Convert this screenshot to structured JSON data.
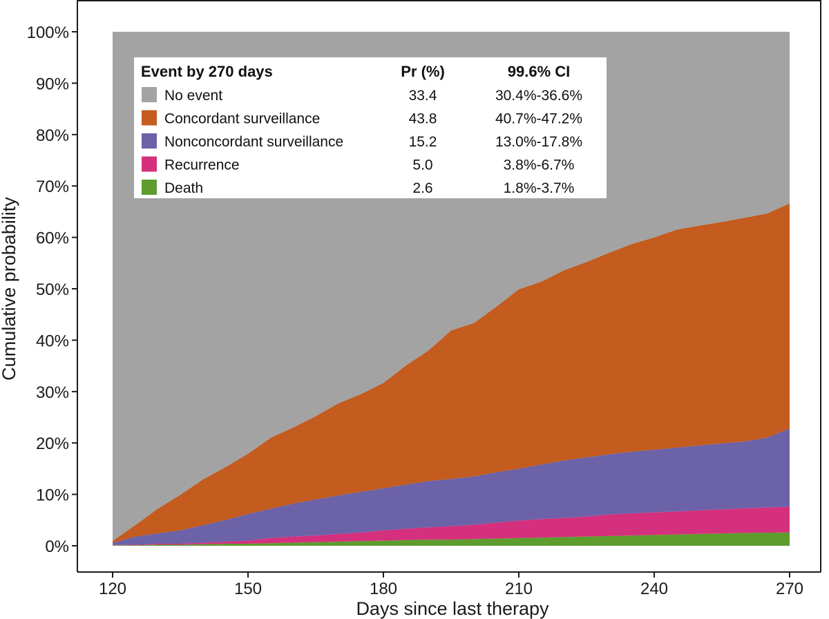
{
  "chart_data": {
    "type": "area",
    "stacked": true,
    "xlabel": "Days since last therapy",
    "ylabel": "Cumulative probability",
    "xlim": [
      120,
      270
    ],
    "ylim": [
      0,
      1
    ],
    "x_ticks": [
      120,
      150,
      180,
      210,
      240,
      270
    ],
    "y_ticks": [
      "0%",
      "10%",
      "20%",
      "30%",
      "40%",
      "50%",
      "60%",
      "70%",
      "80%",
      "90%",
      "100%"
    ],
    "x": [
      120,
      125,
      130,
      135,
      140,
      145,
      150,
      155,
      160,
      165,
      170,
      175,
      180,
      185,
      190,
      195,
      200,
      205,
      210,
      215,
      220,
      225,
      230,
      235,
      240,
      245,
      250,
      255,
      260,
      265,
      270
    ],
    "series": [
      {
        "name": "Death",
        "color": "#5e9c2e",
        "values": [
          0.001,
          0.001,
          0.002,
          0.002,
          0.003,
          0.004,
          0.004,
          0.005,
          0.006,
          0.007,
          0.008,
          0.009,
          0.01,
          0.011,
          0.012,
          0.012,
          0.013,
          0.014,
          0.015,
          0.016,
          0.017,
          0.018,
          0.019,
          0.02,
          0.021,
          0.022,
          0.023,
          0.024,
          0.025,
          0.0255,
          0.026
        ]
      },
      {
        "name": "Recurrence",
        "color": "#d4307e",
        "values": [
          0.0005,
          0.001,
          0.002,
          0.002,
          0.003,
          0.004,
          0.006,
          0.01,
          0.012,
          0.013,
          0.015,
          0.017,
          0.02,
          0.022,
          0.024,
          0.026,
          0.028,
          0.031,
          0.034,
          0.036,
          0.037,
          0.039,
          0.042,
          0.043,
          0.044,
          0.045,
          0.046,
          0.047,
          0.048,
          0.049,
          0.05
        ]
      },
      {
        "name": "Nonconcordant surveillance",
        "color": "#6b62a8",
        "values": [
          0.004,
          0.016,
          0.02,
          0.026,
          0.034,
          0.042,
          0.052,
          0.057,
          0.064,
          0.07,
          0.075,
          0.079,
          0.082,
          0.086,
          0.09,
          0.092,
          0.094,
          0.098,
          0.101,
          0.106,
          0.112,
          0.115,
          0.117,
          0.12,
          0.122,
          0.124,
          0.126,
          0.128,
          0.13,
          0.136,
          0.152
        ]
      },
      {
        "name": "Concordant surveillance",
        "color": "#c45b1f",
        "values": [
          0.004,
          0.022,
          0.048,
          0.069,
          0.089,
          0.103,
          0.117,
          0.138,
          0.148,
          0.162,
          0.179,
          0.19,
          0.205,
          0.232,
          0.254,
          0.289,
          0.298,
          0.322,
          0.349,
          0.356,
          0.37,
          0.38,
          0.392,
          0.404,
          0.413,
          0.424,
          0.428,
          0.431,
          0.435,
          0.436,
          0.438
        ]
      },
      {
        "name": "No event",
        "color": "#a3a3a3",
        "fill_to_top": true
      }
    ]
  },
  "legend": {
    "headers": {
      "event": "Event by 270 days",
      "pr": "Pr (%)",
      "ci": "99.6% CI"
    },
    "rows": [
      {
        "label": "No event",
        "color": "#a3a3a3",
        "pr": "33.4",
        "ci": "30.4%-36.6%"
      },
      {
        "label": "Concordant surveillance",
        "color": "#c45b1f",
        "pr": "43.8",
        "ci": "40.7%-47.2%"
      },
      {
        "label": "Nonconcordant surveillance",
        "color": "#6b62a8",
        "pr": "15.2",
        "ci": "13.0%-17.8%"
      },
      {
        "label": "Recurrence",
        "color": "#d4307e",
        "pr": "5.0",
        "ci": "3.8%-6.7%"
      },
      {
        "label": "Death",
        "color": "#5e9c2e",
        "pr": "2.6",
        "ci": "1.8%-3.7%"
      }
    ]
  }
}
